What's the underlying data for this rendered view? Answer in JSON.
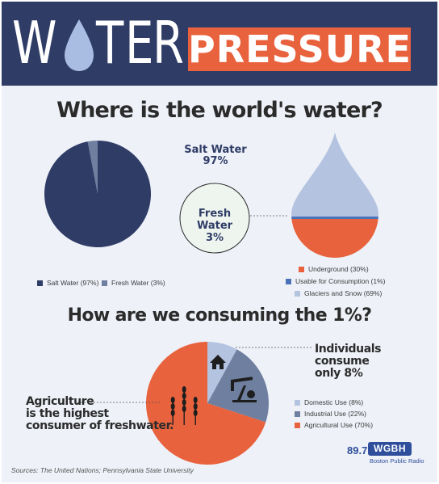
{
  "banner": {
    "water_letters": [
      "W",
      "T",
      "E",
      "R"
    ],
    "pressure": "PRESSURE"
  },
  "section1": {
    "heading": "Where is the world's water?",
    "salt_label": "Salt Water",
    "salt_value": "97%",
    "fresh_label": "Fresh Water",
    "fresh_value": "3%"
  },
  "section2": {
    "heading": "How are we consuming the 1%?",
    "individuals_line1": "Individuals consume",
    "individuals_line2": "only 8%",
    "agri_line1": "Agriculture",
    "agri_line2": "is the highest",
    "agri_line3": "consumer of freshwater."
  },
  "footer": {
    "sources": "Sources: The United Nations; Pennsylvania State University",
    "logo_number": "89.7",
    "logo_name": "WGBH",
    "logo_sub": "Boston Public Radio"
  },
  "icons": [
    "water-drop-icon",
    "house-icon",
    "oil-pump-icon",
    "wheat-icon"
  ],
  "chart_data": [
    {
      "type": "pie",
      "title": "Where is the world's water?",
      "categories": [
        "Salt Water (97%)",
        "Fresh Water (3%)"
      ],
      "values": [
        97,
        3
      ],
      "colors": [
        "#2f3c66",
        "#6f7fa0"
      ],
      "legend": "bottom"
    },
    {
      "type": "area",
      "categories": [
        "Underground (30%)",
        "Usable for Consumption (1%)",
        "Glaciers and Snow (69%)"
      ],
      "values": [
        30,
        1,
        69
      ],
      "colors": [
        "#e8623d",
        "#4a72b8",
        "#b4c3e0"
      ],
      "legend": "bottom"
    },
    {
      "type": "pie",
      "title": "How are we consuming the 1%?",
      "categories": [
        "Domestic Use (8%)",
        "Industrial Use (22%)",
        "Agricultural Use (70%)"
      ],
      "values": [
        8,
        22,
        70
      ],
      "colors": [
        "#b4c3e0",
        "#6f7fa0",
        "#e8623d"
      ],
      "legend": "right"
    }
  ]
}
